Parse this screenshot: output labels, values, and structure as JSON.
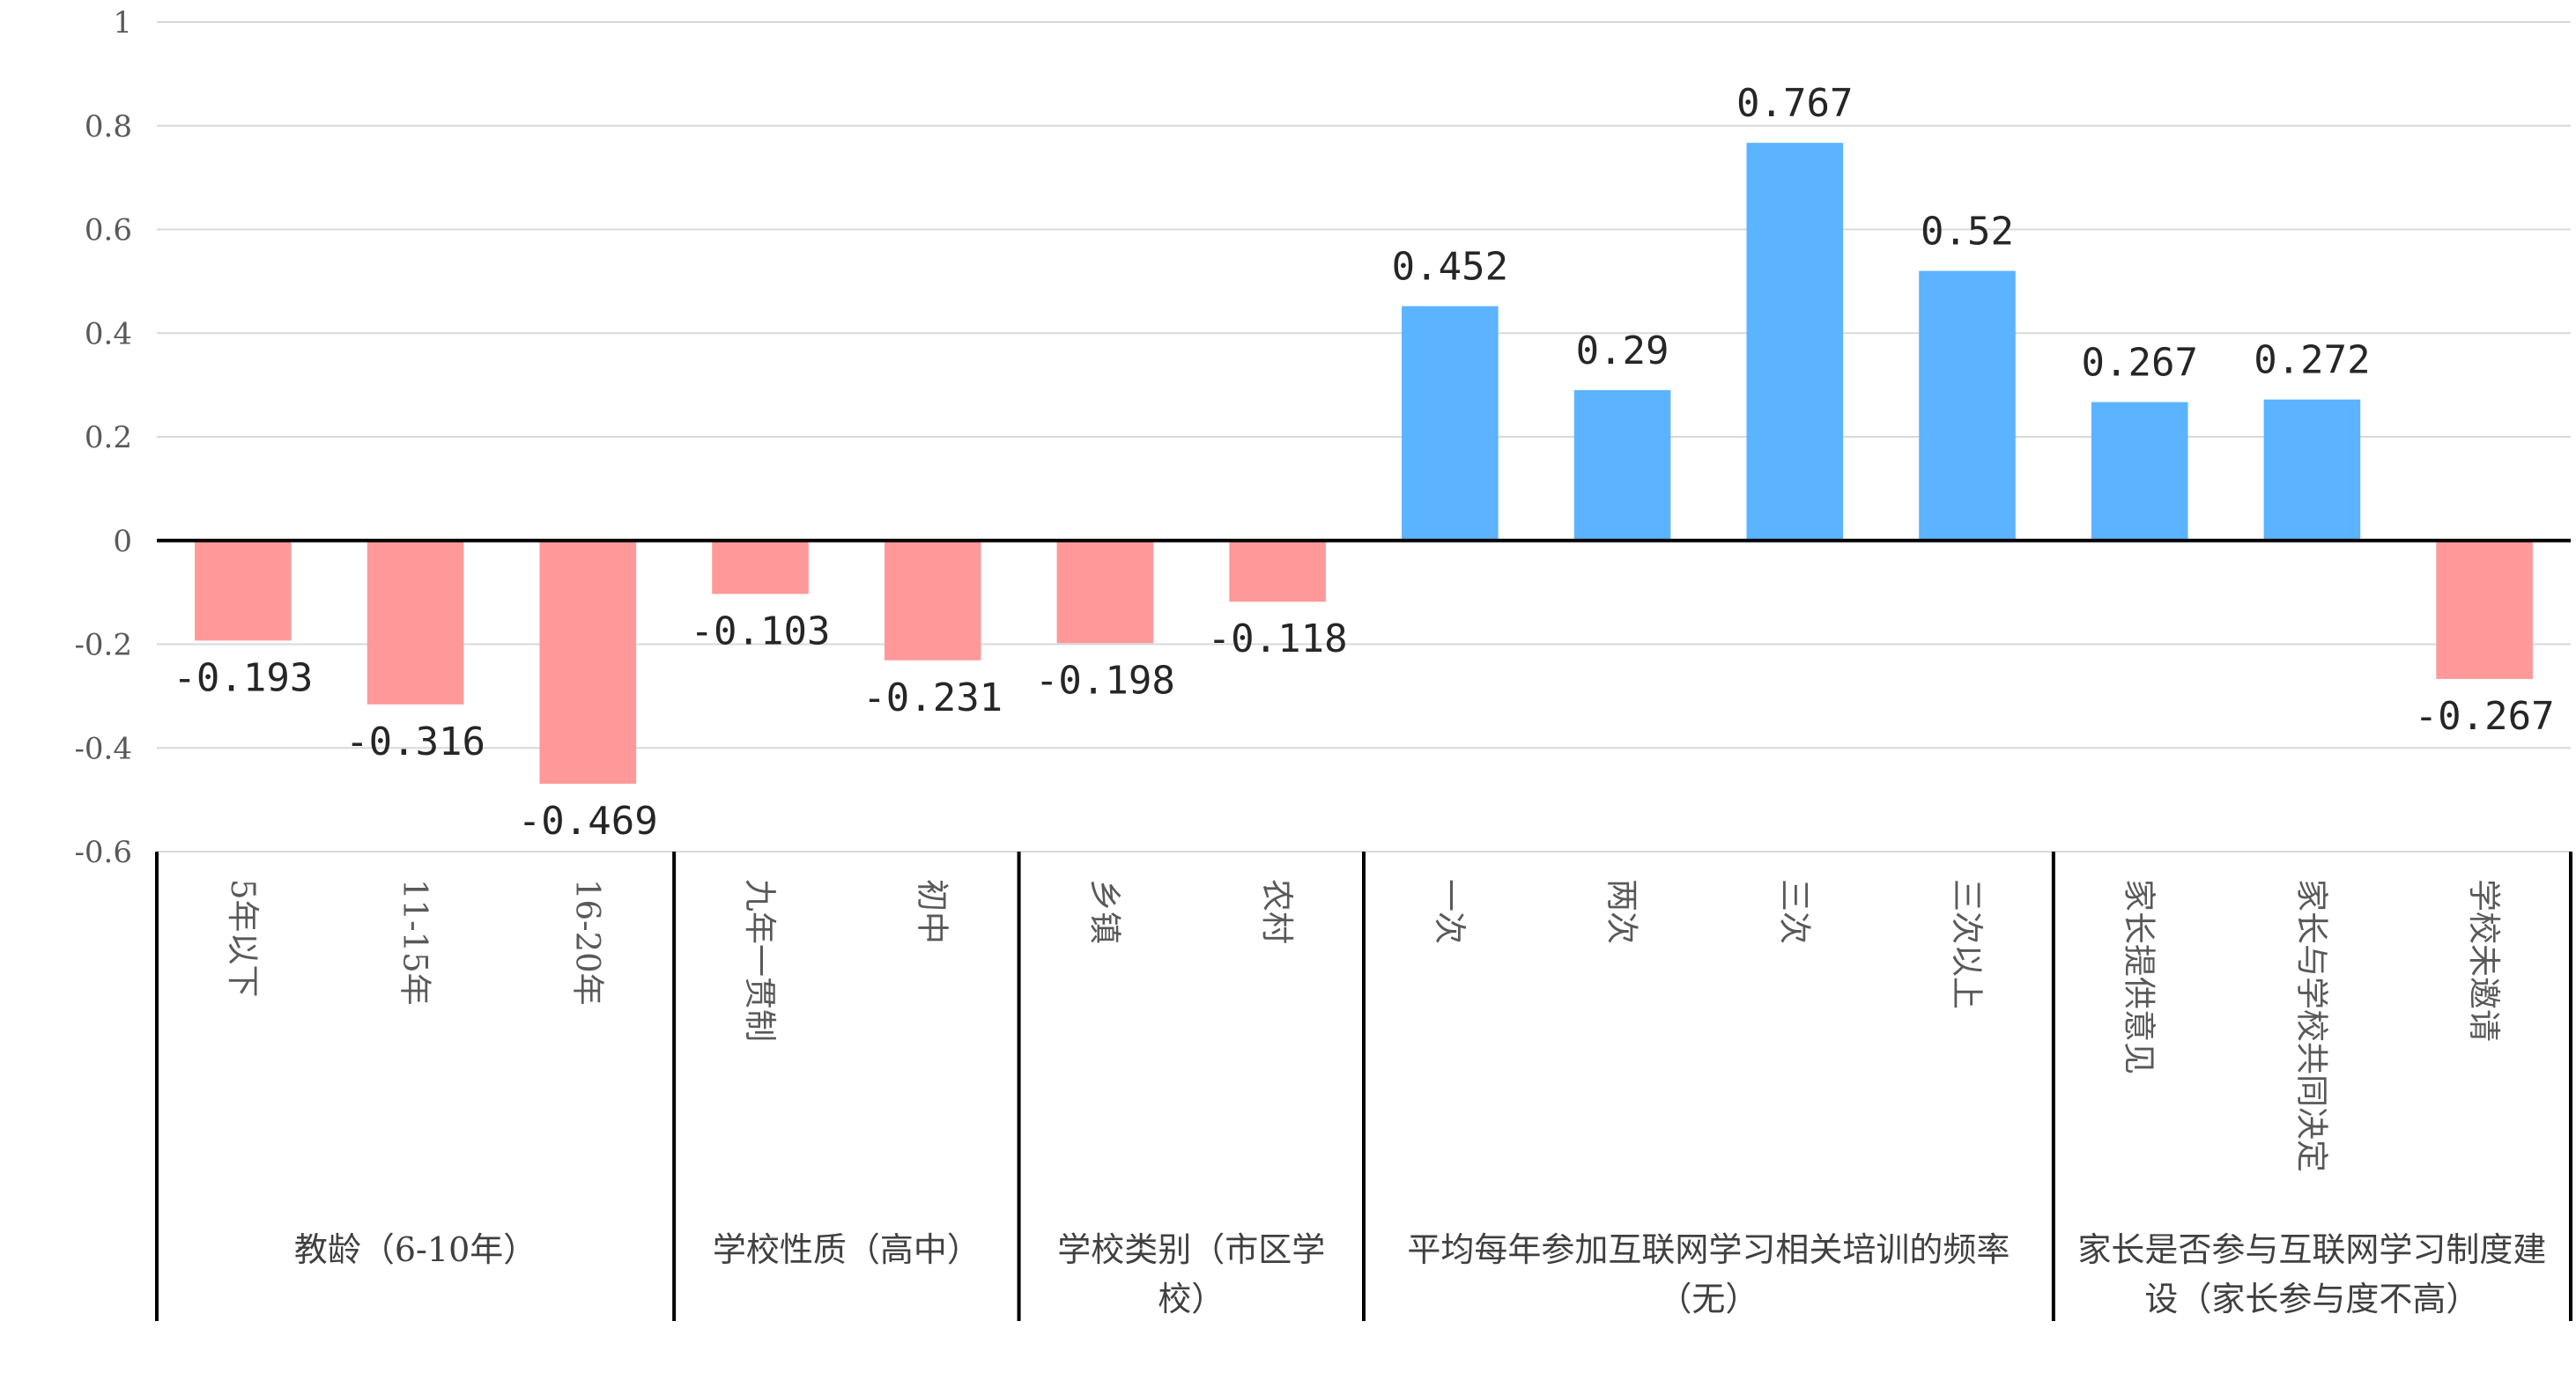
{
  "chart_data": {
    "type": "bar",
    "ylim": [
      -0.6,
      1
    ],
    "yticks": [
      "1",
      "0.8",
      "0.6",
      "0.4",
      "0.2",
      "0",
      "-0.2",
      "-0.4",
      "-0.6"
    ],
    "grid": true,
    "colors": {
      "positive": "#5cb3ff",
      "negative": "#ff9999",
      "grid": "#d9d9d9",
      "axis": "#000000"
    },
    "categories": [
      "5年以下",
      "11-15年",
      "16-20年",
      "九年一贯制",
      "初中",
      "乡镇",
      "农村",
      "一次",
      "两次",
      "三次",
      "三次以上",
      "家长提供意见",
      "家长与学校共同决定",
      "学校未邀请"
    ],
    "values": [
      -0.193,
      -0.316,
      -0.469,
      -0.103,
      -0.231,
      -0.198,
      -0.118,
      0.452,
      0.29,
      0.767,
      0.52,
      0.267,
      0.272,
      -0.267
    ],
    "value_labels": [
      "-0.193",
      "-0.316",
      "-0.469",
      "-0.103",
      "-0.231",
      "-0.198",
      "-0.118",
      "0.452",
      "0.29",
      "0.767",
      "0.52",
      "0.267",
      "0.272",
      "-0.267"
    ],
    "groups": [
      {
        "label_lines": [
          "教龄（6-10年）"
        ],
        "count": 3
      },
      {
        "label_lines": [
          "学校性质（高中）"
        ],
        "count": 2
      },
      {
        "label_lines": [
          "学校类别（市区学",
          "校）"
        ],
        "count": 2
      },
      {
        "label_lines": [
          "平均每年参加互联网学习相关培训的频率",
          "（无）"
        ],
        "count": 4
      },
      {
        "label_lines": [
          "家长是否参与互联网学习制度建",
          "设（家长参与度不高）"
        ],
        "count": 3
      }
    ]
  }
}
